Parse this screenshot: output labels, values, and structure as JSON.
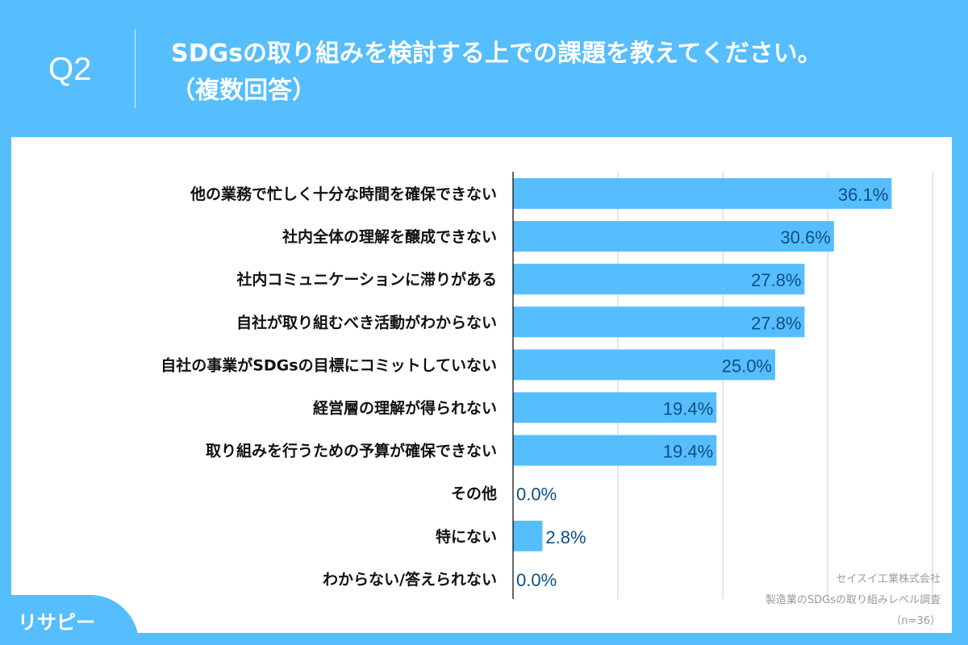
{
  "header": {
    "question_no": "Q2",
    "title_line1": "SDGsの取り組みを検討する上での課題を教えてください。",
    "title_line2": "（複数回答）"
  },
  "source": {
    "company": "セイスイ工業株式会社",
    "survey": "製造業のSDGsの取り組みレベル調査",
    "n": "（n=36）"
  },
  "logo": {
    "text": "リサピー"
  },
  "colors": {
    "bar": "#56befc",
    "value_text": "#0d4f86",
    "background": "#56befc"
  },
  "chart_data": {
    "type": "bar",
    "orientation": "horizontal",
    "xlim": [
      0,
      40
    ],
    "grid": true,
    "title": "",
    "xlabel": "",
    "ylabel": "",
    "categories": [
      "他の業務で忙しく十分な時間を確保できない",
      "社内全体の理解を醸成できない",
      "社内コミュニケーションに滞りがある",
      "自社が取り組むべき活動がわからない",
      "自社の事業がSDGsの目標にコミットしていない",
      "経営層の理解が得られない",
      "取り組みを行うための予算が確保できない",
      "その他",
      "特にない",
      "わからない/答えられない"
    ],
    "values": [
      36.1,
      30.6,
      27.8,
      27.8,
      25.0,
      19.4,
      19.4,
      0.0,
      2.8,
      0.0
    ],
    "value_labels": [
      "36.1%",
      "30.6%",
      "27.8%",
      "27.8%",
      "25.0%",
      "19.4%",
      "19.4%",
      "0.0%",
      "2.8%",
      "0.0%"
    ]
  }
}
